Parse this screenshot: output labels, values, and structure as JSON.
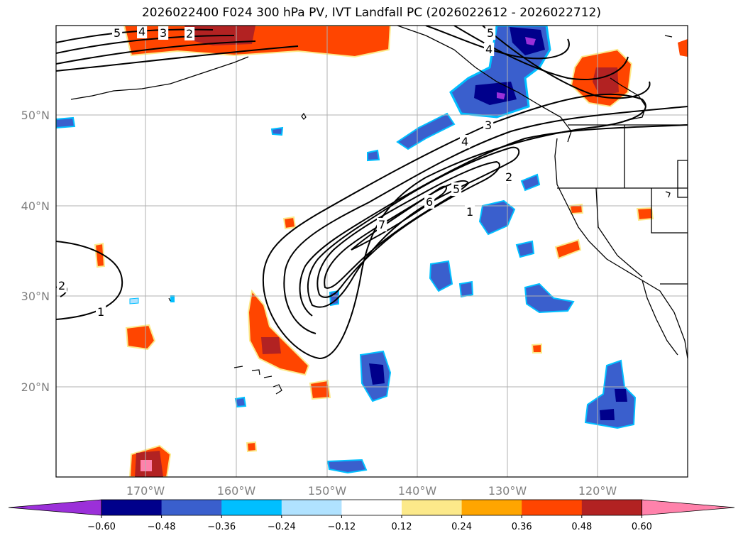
{
  "title": "2026022400 F024 300 hPa PV, IVT Landfall PC (2026022612 - 2026022712)",
  "lon_labels": [
    "170°W",
    "160°W",
    "150°W",
    "140°W",
    "130°W",
    "120°W"
  ],
  "lat_labels": [
    "50°N",
    "40°N",
    "30°N",
    "20°N"
  ],
  "colorbar": {
    "colors": [
      "#9b30d9",
      "#00008b",
      "#3a5fcd",
      "#00bfff",
      "#b0e2ff",
      "#ffffff",
      "#fce98a",
      "#ffa500",
      "#ff4500",
      "#b22222",
      "#ff82ab"
    ],
    "tick_labels": [
      "−0.60",
      "−0.48",
      "−0.36",
      "−0.24",
      "−0.12",
      "0.12",
      "0.24",
      "0.36",
      "0.48",
      "0.60"
    ]
  },
  "contour_labels": [
    "7",
    "6",
    "5",
    "4",
    "3",
    "2",
    "1",
    "1",
    "2",
    "5",
    "4",
    "3",
    "2",
    "5",
    "4"
  ]
}
